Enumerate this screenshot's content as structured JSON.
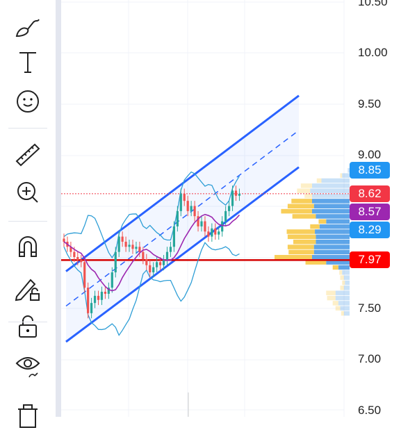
{
  "toolbar": {
    "items": [
      {
        "name": "brush-icon"
      },
      {
        "name": "text-icon"
      },
      {
        "name": "emoji-icon"
      },
      {
        "name": "ruler-icon"
      },
      {
        "name": "zoom-in-icon"
      },
      {
        "name": "magnet-icon"
      },
      {
        "name": "lock-drawings-icon"
      },
      {
        "name": "unlock-icon"
      },
      {
        "name": "eye-icon"
      },
      {
        "name": "trash-icon"
      }
    ]
  },
  "colors": {
    "up": "#26a69a",
    "down": "#ef5350",
    "channel": "#2962ff",
    "bands": "#2e9ed6",
    "ma": "#9c27b0",
    "support": "#d50000",
    "vp_up": "#f7c948",
    "vp_down": "#4c9be6"
  },
  "price_axis": {
    "ticks": [
      "10.50",
      "10.00",
      "9.50",
      "9.00",
      "7.50",
      "7.00",
      "6.50"
    ]
  },
  "price_labels": [
    {
      "value": "8.85",
      "color": "#2196f3"
    },
    {
      "value": "8.62",
      "color": "#f23645"
    },
    {
      "value": "8.57",
      "color": "#9c27b0"
    },
    {
      "value": "8.29",
      "color": "#2196f3"
    },
    {
      "value": "7.97",
      "color": "#ff0000"
    }
  ],
  "chart_data": {
    "type": "candlestick",
    "closes": [
      8.15,
      8.1,
      8.05,
      8.0,
      7.97,
      7.95,
      7.7,
      7.45,
      7.55,
      7.62,
      7.58,
      7.66,
      7.64,
      7.7,
      7.85,
      8.05,
      8.2,
      8.15,
      8.1,
      8.12,
      8.08,
      8.1,
      8.05,
      7.98,
      7.92,
      7.85,
      7.9,
      7.95,
      7.92,
      7.97,
      8.05,
      8.1,
      8.3,
      8.45,
      8.62,
      8.55,
      8.45,
      8.5,
      8.4,
      8.3,
      8.35,
      8.25,
      8.2,
      8.28,
      8.22,
      8.25,
      8.35,
      8.45,
      8.5,
      8.65,
      8.6,
      8.62
    ],
    "channel": {
      "lower": [
        7.17,
        8.88
      ],
      "middle": [
        7.52,
        9.24
      ],
      "upper": [
        7.86,
        9.58
      ]
    },
    "horizontal_lines": [
      {
        "price": 7.97,
        "style": "solid"
      },
      {
        "price": 8.62,
        "style": "dotted"
      }
    ],
    "volume_profile": [
      [
        8.85,
        0,
        2
      ],
      [
        8.8,
        2,
        8
      ],
      [
        8.75,
        5,
        30
      ],
      [
        8.7,
        12,
        40
      ],
      [
        8.65,
        14,
        42
      ],
      [
        8.6,
        8,
        40
      ],
      [
        8.55,
        22,
        40
      ],
      [
        8.5,
        28,
        38
      ],
      [
        8.45,
        33,
        40
      ],
      [
        8.4,
        25,
        36
      ],
      [
        8.35,
        8,
        25
      ],
      [
        8.3,
        10,
        32
      ],
      [
        8.25,
        30,
        37
      ],
      [
        8.2,
        30,
        36
      ],
      [
        8.15,
        24,
        36
      ],
      [
        8.1,
        28,
        38
      ],
      [
        8.05,
        27,
        38
      ],
      [
        8.0,
        40,
        40
      ],
      [
        7.95,
        22,
        25
      ],
      [
        7.9,
        6,
        12
      ],
      [
        7.85,
        3,
        8
      ],
      [
        7.8,
        4,
        6
      ],
      [
        7.75,
        3,
        5
      ],
      [
        7.7,
        4,
        6
      ],
      [
        7.65,
        10,
        15
      ],
      [
        7.6,
        9,
        15
      ],
      [
        7.55,
        6,
        12
      ],
      [
        7.5,
        5,
        10
      ],
      [
        7.45,
        3,
        6
      ]
    ],
    "value_area": [
      7.9,
      8.57
    ],
    "yrange": [
      6.5,
      10.5
    ]
  }
}
